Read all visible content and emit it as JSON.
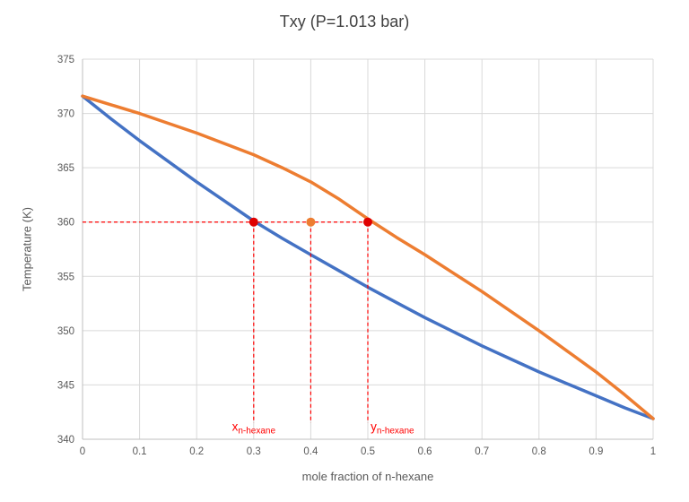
{
  "chart_data": {
    "type": "line",
    "title": "Txy (P=1.013 bar)",
    "xlabel": "mole fraction of n-hexane",
    "ylabel": "Temperature (K)",
    "xlim": [
      0,
      1
    ],
    "ylim": [
      340,
      375
    ],
    "grid": true,
    "legend": "none",
    "x_tick_labels": [
      "0",
      "0.1",
      "0.2",
      "0.3",
      "0.4",
      "0.5",
      "0.6",
      "0.7",
      "0.8",
      "0.9",
      "1"
    ],
    "x_tick_values": [
      0,
      0.1,
      0.2,
      0.3,
      0.4,
      0.5,
      0.6,
      0.7,
      0.8,
      0.9,
      1
    ],
    "y_tick_values": [
      340,
      345,
      350,
      355,
      360,
      365,
      370,
      375
    ],
    "x": [
      0,
      0.05,
      0.1,
      0.15,
      0.2,
      0.25,
      0.3,
      0.35,
      0.4,
      0.45,
      0.5,
      0.55,
      0.6,
      0.65,
      0.7,
      0.75,
      0.8,
      0.85,
      0.9,
      0.95,
      1
    ],
    "series": [
      {
        "name": "bubble-point-liquid-line",
        "color": "#4472c4",
        "values": [
          371.6,
          369.5,
          367.5,
          365.6,
          363.7,
          361.9,
          360.1,
          358.5,
          357.0,
          355.5,
          354.0,
          352.6,
          351.2,
          349.9,
          348.6,
          347.4,
          346.2,
          345.1,
          344.0,
          342.9,
          341.9
        ]
      },
      {
        "name": "dew-point-vapor-line",
        "color": "#ed7d31",
        "values": [
          371.6,
          370.8,
          370.0,
          369.1,
          368.2,
          367.2,
          366.2,
          365.0,
          363.7,
          362.1,
          360.3,
          358.6,
          357.0,
          355.3,
          353.6,
          351.8,
          350.0,
          348.1,
          346.2,
          344.1,
          341.9
        ]
      }
    ],
    "annotations": {
      "tie_temperature": 360,
      "horizontal_dashed": {
        "from_x": 0,
        "to_x": 0.5,
        "T": 360,
        "color": "#ff0000"
      },
      "vertical_dashed": [
        {
          "x": 0.3,
          "from_T": 360,
          "to_T": 341.5,
          "color": "#ff0000"
        },
        {
          "x": 0.4,
          "from_T": 360,
          "to_T": 341.5,
          "color": "#ff0000"
        },
        {
          "x": 0.5,
          "from_T": 360,
          "to_T": 341.5,
          "color": "#ff0000"
        }
      ],
      "points": [
        {
          "name": "liquid-composition-point",
          "x": 0.3,
          "T": 360,
          "color": "#e00000"
        },
        {
          "name": "feed-composition-point",
          "x": 0.4,
          "T": 360,
          "color": "#ed7d31"
        },
        {
          "name": "vapor-composition-point",
          "x": 0.5,
          "T": 360,
          "color": "#e00000"
        }
      ],
      "labels": [
        {
          "name": "x-n-hexane-label",
          "main": "x",
          "sub": "n-hexane",
          "x": 0.3,
          "T": 340.8,
          "color": "#ff0000",
          "anchor": "middle"
        },
        {
          "name": "y-n-hexane-label",
          "main": "y",
          "sub": "n-hexane",
          "x": 0.505,
          "T": 340.8,
          "color": "#ff0000",
          "anchor": "start"
        }
      ]
    },
    "colors": {
      "grid": "#d9d9d9",
      "axis": "#bfbfbf",
      "tick_text": "#595959",
      "title_text": "#404040"
    }
  }
}
